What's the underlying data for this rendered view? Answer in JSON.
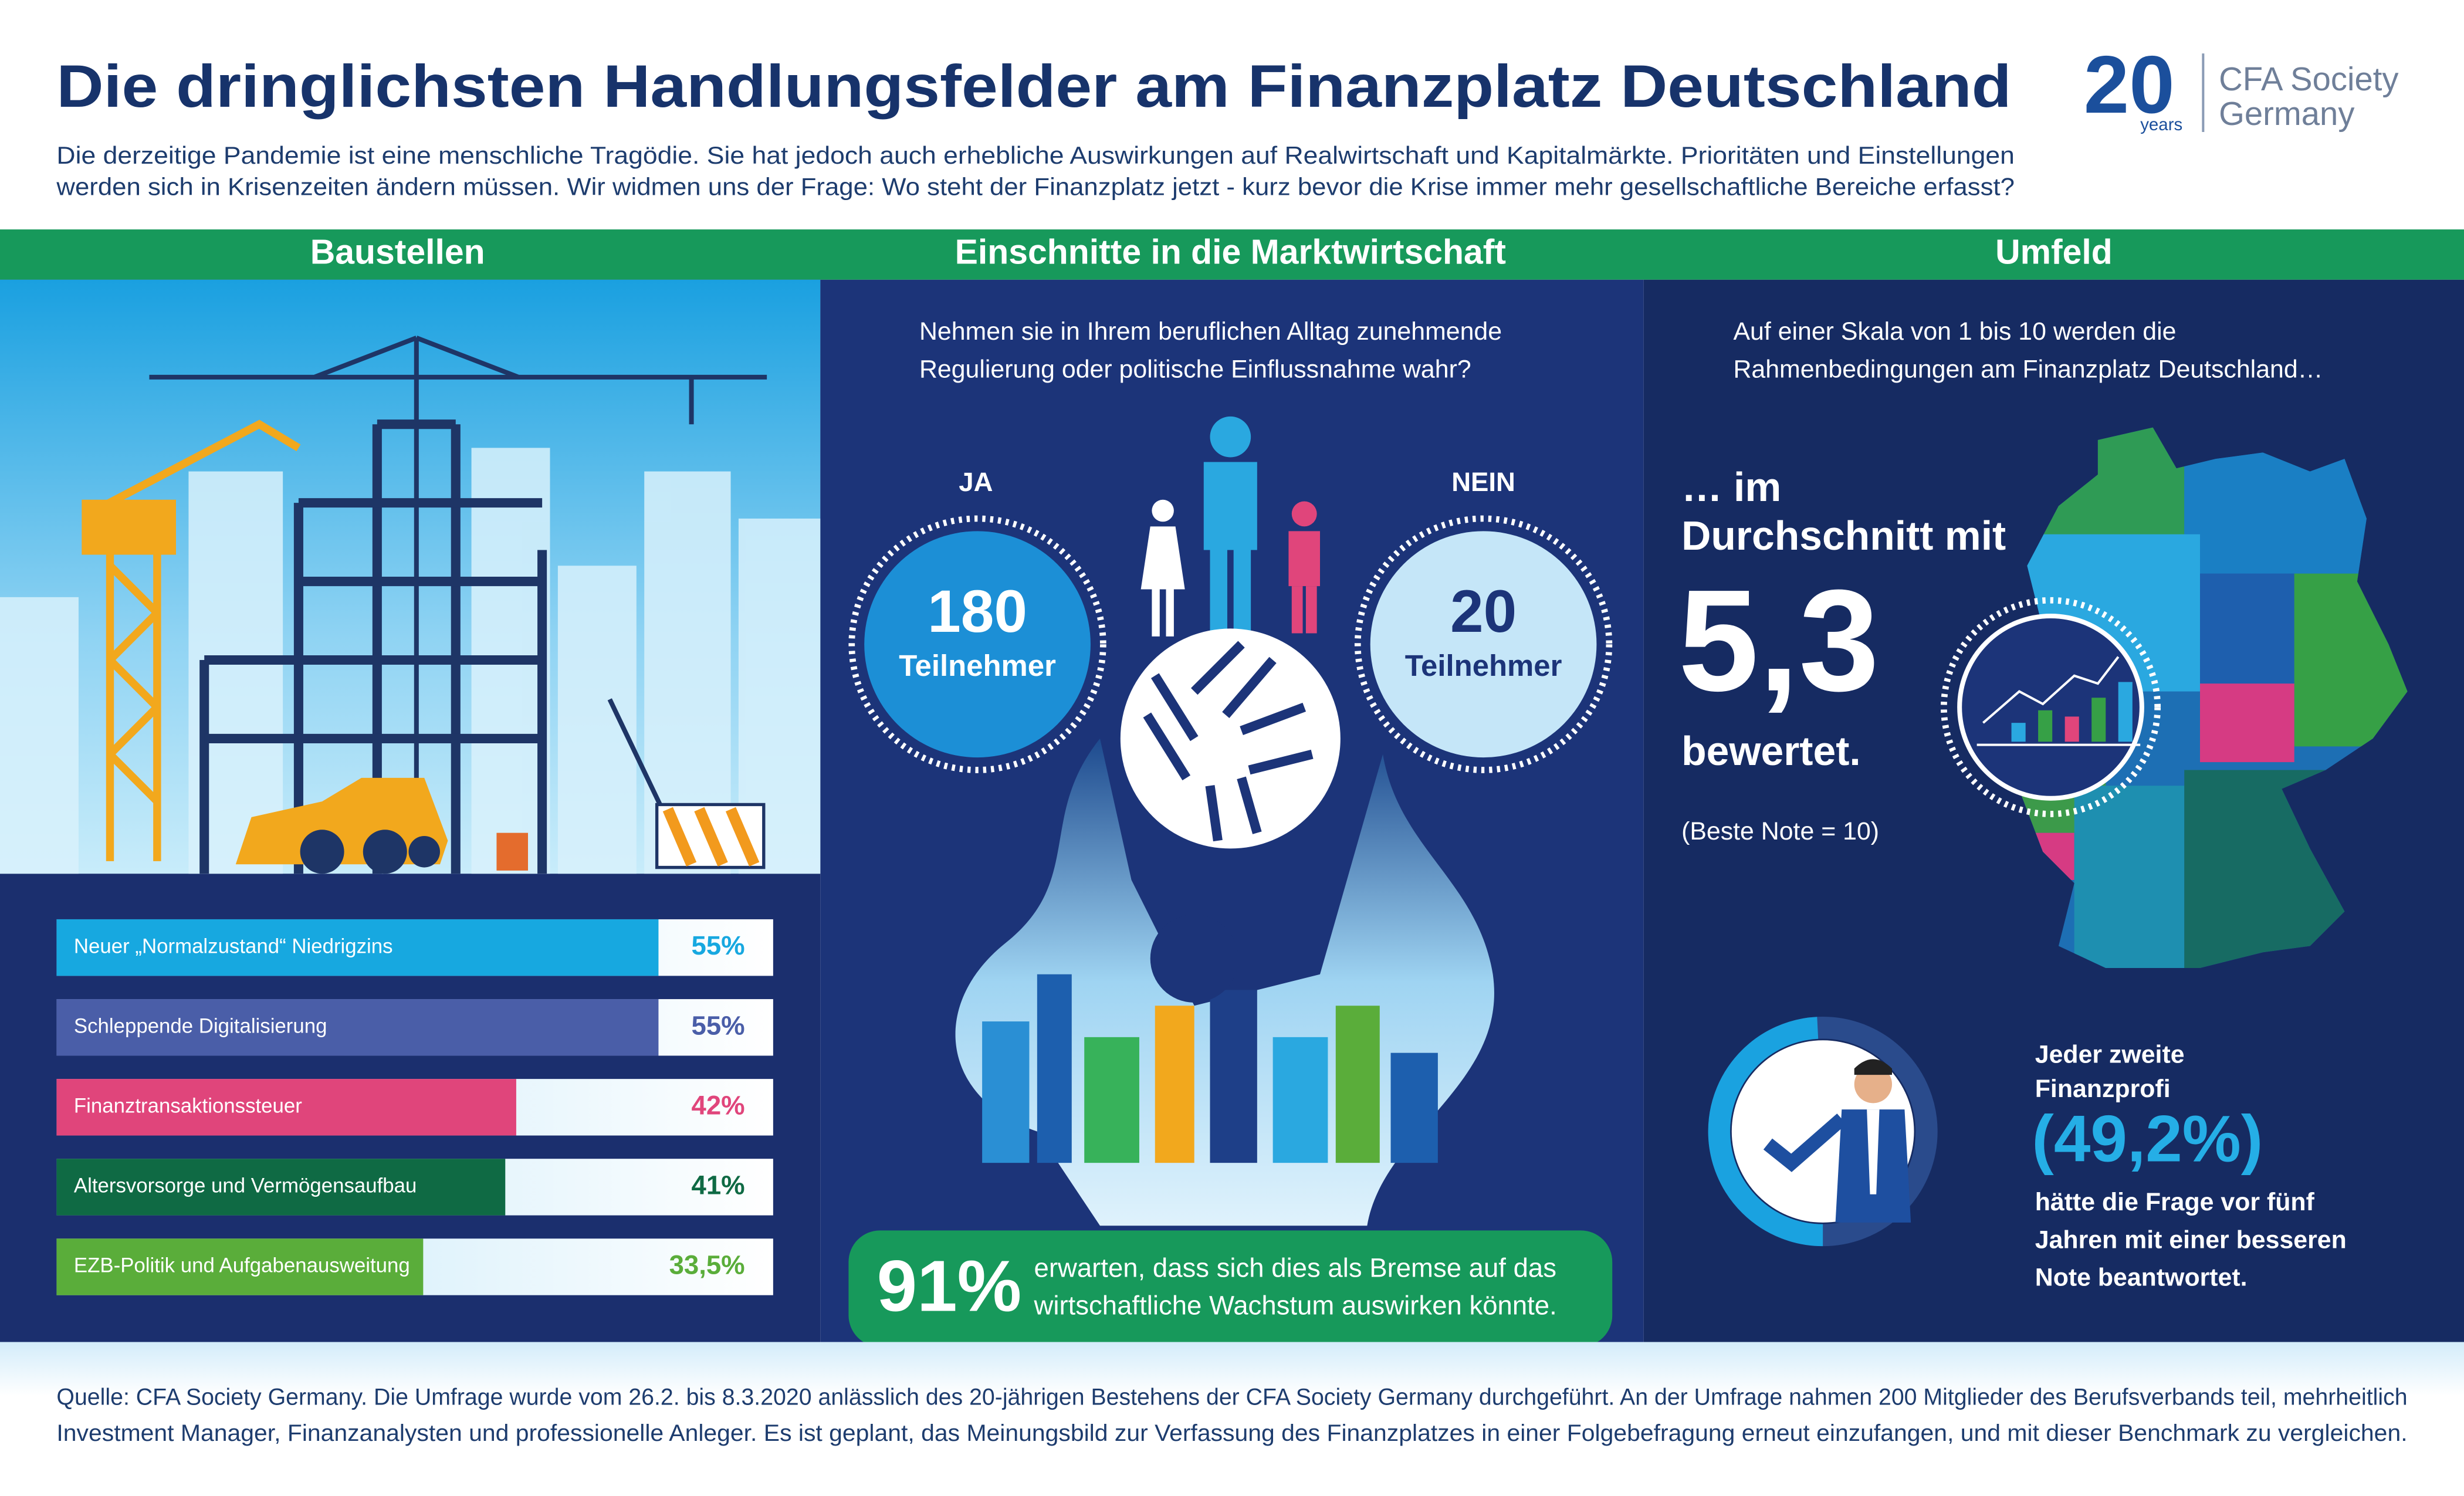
{
  "header": {
    "title": "Die dringlichsten Handlungsfelder am Finanzplatz Deutschland",
    "intro": [
      "Die derzeitige Pandemie ist eine menschliche Tragödie. Sie hat jedoch auch erhebliche Auswirkungen auf Realwirtschaft und Kapitalmärkte. Prioritäten und Einstellungen",
      "werden sich in Krisenzeiten ändern müssen. Wir widmen uns der Frage: Wo steht der Finanzplatz jetzt - kurz bevor die Krise immer mehr gesellschaftliche Bereiche erfasst?"
    ]
  },
  "logo": {
    "number": "20",
    "label": "years",
    "org": [
      "CFA Society",
      "Germany"
    ]
  },
  "baustellen": {
    "heading": "Baustellen",
    "items": [
      {
        "label": "Neuer „Normalzustand“ Niedrigzins",
        "value": 55,
        "value_label": "55%",
        "color": "#17a8e0"
      },
      {
        "label": "Schleppende Digitalisierung",
        "value": 55,
        "value_label": "55%",
        "color": "#4a5ea8"
      },
      {
        "label": "Finanztransaktionssteuer",
        "value": 42,
        "value_label": "42%",
        "color": "#e0457b"
      },
      {
        "label": "Altersvorsorge und Vermögensaufbau",
        "value": 41,
        "value_label": "41%",
        "color": "#0f6a44"
      },
      {
        "label": "EZB-Politik und Aufgabenausweitung",
        "value": 33.5,
        "value_label": "33,5%",
        "color": "#5aad3a"
      }
    ]
  },
  "einschnitte": {
    "heading": "Einschnitte in die Marktwirtschaft",
    "question": [
      "Nehmen sie in Ihrem beruflichen Alltag zunehmende",
      "Regulierung oder politische Einflussnahme wahr?"
    ],
    "yes": {
      "label": "JA",
      "value": 180,
      "unit": "Teilnehmer"
    },
    "no": {
      "label": "NEIN",
      "value": 20,
      "unit": "Teilnehmer"
    },
    "highlight": {
      "value": "91%",
      "text": [
        "erwarten, dass sich dies als Bremse auf das",
        "wirtschaftliche Wachstum auswirken könnte."
      ]
    }
  },
  "umfeld": {
    "heading": "Umfeld",
    "intro": [
      "Auf einer Skala von 1 bis 10 werden die",
      "Rahmenbedingungen am Finanzplatz Deutschland…"
    ],
    "average": {
      "prefix": [
        "… im",
        "Durchschnitt mit"
      ],
      "value": "5,3",
      "suffix": "bewertet.",
      "note": "(Beste Note = 10)"
    },
    "profi": {
      "lines": [
        "Jeder zweite",
        "Finanzprofi"
      ],
      "value": 49.2,
      "value_label": "(49,2%)",
      "rest": [
        "hätte die Frage vor fünf",
        "Jahren mit einer besseren",
        "Note beantwortet."
      ]
    }
  },
  "footer": [
    "Quelle: CFA Society Germany. Die Umfrage wurde vom 26.2. bis 8.3.2020 anlässlich des 20-jährigen Bestehens der CFA Society Germany durchgeführt. An der Umfrage nahmen 200 Mitglieder des Berufsverbands teil, mehrheitlich",
    "Investment Manager, Finanzanalysten und professionelle Anleger. Es ist geplant, das Meinungsbild zur Verfassung des Finanzplatzes in einer Folgebefragung erneut einzufangen, und mit dieser Benchmark zu vergleichen."
  ]
}
